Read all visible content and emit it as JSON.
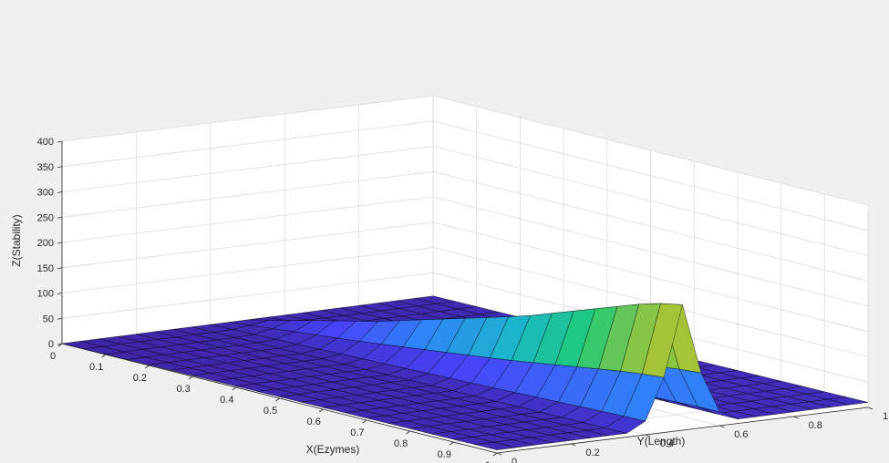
{
  "chart_data": {
    "type": "surface",
    "title": "",
    "xlabel": "X(Ezymes)",
    "ylabel": "Y(Length)",
    "zlabel": "Z(Stability)",
    "xlim": [
      0,
      1
    ],
    "ylim": [
      0,
      1
    ],
    "zlim": [
      0,
      400
    ],
    "x_ticks": [
      "0",
      "0.1",
      "0.2",
      "0.3",
      "0.4",
      "0.5",
      "0.6",
      "0.7",
      "0.8",
      "0.9",
      "1"
    ],
    "y_ticks": [
      "0",
      "0.2",
      "0.4",
      "0.6",
      "0.8",
      "1"
    ],
    "z_ticks": [
      "0",
      "50",
      "100",
      "150",
      "200",
      "250",
      "300",
      "350",
      "400"
    ],
    "grid": true,
    "colormap": "parula",
    "colormap_stops": [
      "#3e26a8",
      "#4743f8",
      "#2e87f7",
      "#1bb5c9",
      "#1fca7b",
      "#a2c438",
      "#fbba3d",
      "#f9fb15"
    ],
    "x_grid": [
      0,
      0.05,
      0.1,
      0.15,
      0.2,
      0.25,
      0.3,
      0.35,
      0.4,
      0.45,
      0.5,
      0.55,
      0.6,
      0.65,
      0.7,
      0.75,
      0.8,
      0.85,
      0.9,
      0.95,
      1
    ],
    "y_grid": [
      0,
      0.05,
      0.1,
      0.15,
      0.2,
      0.25,
      0.3,
      0.35,
      0.4,
      0.45,
      0.5,
      0.55,
      0.6,
      0.65,
      0.7,
      0.75,
      0.8,
      0.85,
      0.9,
      0.95,
      1
    ],
    "ridge_y": 0.5,
    "ridge_peak_z": [
      0,
      10,
      20,
      30,
      40,
      50,
      60,
      72,
      84,
      96,
      108,
      120,
      132,
      145,
      160,
      175,
      190,
      205,
      220,
      232,
      240
    ]
  }
}
